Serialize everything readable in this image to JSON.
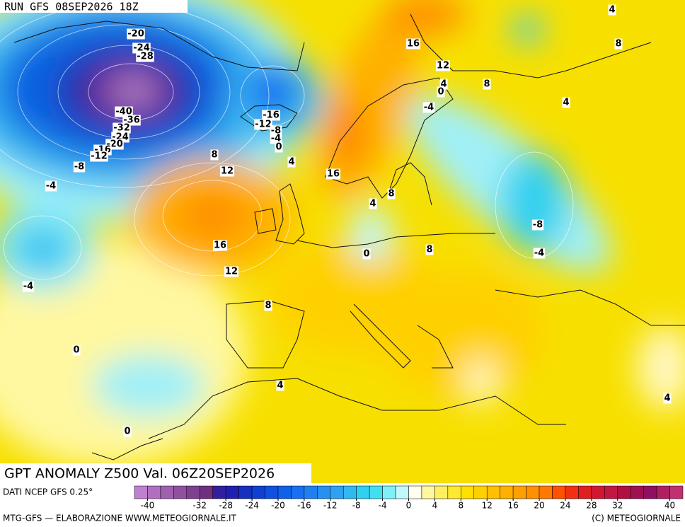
{
  "header": {
    "run": "RUN GFS 08SEP2026 18Z"
  },
  "title": "GPT ANOMALY Z500 Val. 06Z20SEP2026",
  "contour_labels": [
    -20,
    -24,
    -28,
    -40,
    -36,
    -32,
    -24,
    -20,
    -16,
    -12,
    -8,
    -4,
    -4,
    0,
    0,
    4,
    8,
    12,
    16,
    12,
    8,
    4,
    -16,
    -12,
    -8,
    -4,
    0,
    16,
    16,
    12,
    4,
    0,
    -4,
    8,
    4,
    8,
    4,
    8,
    4,
    0,
    8,
    -8,
    -4,
    4
  ],
  "legend": {
    "source": "DATI NCEP GFS 0.25°",
    "lim": [
      -42,
      42
    ],
    "ticks": [
      -40,
      -32,
      -28,
      -24,
      -20,
      -16,
      -12,
      -8,
      -4,
      0,
      4,
      8,
      12,
      16,
      20,
      24,
      28,
      32,
      40
    ],
    "colors": [
      "#c080d0",
      "#b070c0",
      "#a060b0",
      "#9050a0",
      "#804090",
      "#703080",
      "#3020a0",
      "#2020b0",
      "#1830c0",
      "#1040d0",
      "#1050e0",
      "#1060e8",
      "#1870f0",
      "#2080f0",
      "#2890f0",
      "#30a0f0",
      "#30b8f0",
      "#30d0f0",
      "#40e0f0",
      "#80f0f8",
      "#c0f8fc",
      "#fffff0",
      "#fff8a0",
      "#fff060",
      "#ffe830",
      "#ffe000",
      "#ffd000",
      "#ffc000",
      "#ffb000",
      "#ffa000",
      "#ff9000",
      "#ff7800",
      "#ff5000",
      "#f03010",
      "#e02020",
      "#d01830",
      "#c01840",
      "#b01040",
      "#a01050",
      "#901060",
      "#b02060",
      "#c03070"
    ]
  },
  "footer": {
    "credit_left": "MTG-GFS — ELABORAZIONE WWW.METEOGIORNALE.IT",
    "credit_right": "(C) METEOGIORNALE"
  }
}
